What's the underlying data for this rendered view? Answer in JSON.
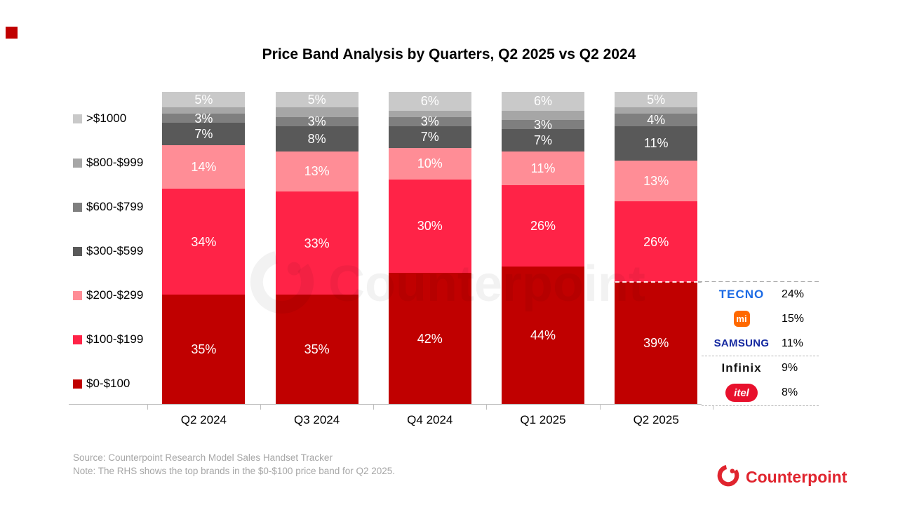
{
  "chart_data": {
    "type": "bar",
    "stacked": true,
    "title": "Price Band Analysis by Quarters, Q2 2025 vs Q2 2024",
    "value_unit": "%",
    "ylim": [
      0,
      100
    ],
    "grid": false,
    "legend_position": "left",
    "bar_label_color": "#FFFFFF",
    "categories": [
      "Q2 2024",
      "Q3 2024",
      "Q4 2024",
      "Q1 2025",
      "Q2 2025"
    ],
    "series": [
      {
        "name": "$0-$100",
        "color": "#C00000",
        "values": [
          35,
          35,
          42,
          44,
          39
        ],
        "show_labels": true
      },
      {
        "name": "$100-$199",
        "color": "#FF2347",
        "values": [
          34,
          33,
          30,
          26,
          26
        ],
        "show_labels": true
      },
      {
        "name": "$200-$299",
        "color": "#FF8D96",
        "values": [
          14,
          13,
          10,
          11,
          13
        ],
        "show_labels": true
      },
      {
        "name": "$300-$599",
        "color": "#595959",
        "values": [
          7,
          8,
          7,
          7,
          11
        ],
        "show_labels": true
      },
      {
        "name": "$600-$799",
        "color": "#7F7F7F",
        "values": [
          3,
          3,
          3,
          3,
          4
        ],
        "show_labels": true
      },
      {
        "name": "$800-$999",
        "color": "#A6A6A6",
        "values": [
          2,
          3,
          2,
          3,
          2
        ],
        "show_labels": false
      },
      {
        "name": ">$1000",
        "color": "#C9C9C9",
        "values": [
          5,
          5,
          6,
          6,
          5
        ],
        "show_labels": true
      }
    ],
    "legend": [
      ">$1000",
      "$800-$999",
      "$600-$799",
      "$300-$599",
      "$200-$299",
      "$100-$199",
      "$0-$100"
    ]
  },
  "brand_table": {
    "linked_band": "$0-$100",
    "linked_category": "Q2 2025",
    "rows": [
      {
        "brand": "TECNO",
        "logo": "tecno",
        "share": "24%"
      },
      {
        "brand": "mi",
        "logo": "xiaomi",
        "share": "15%"
      },
      {
        "brand": "SAMSUNG",
        "logo": "samsung",
        "share": "11%"
      },
      {
        "brand": "Infinix",
        "logo": "infinix",
        "share": "9%"
      },
      {
        "brand": "itel",
        "logo": "itel",
        "share": "8%"
      }
    ]
  },
  "watermark_text": "Counterpoint",
  "footer": {
    "source_line1": "Source: Counterpoint Research Model Sales Handset Tracker",
    "source_line2": "Note: The RHS shows the top brands in the $0-$100 price band for Q2 2025.",
    "brand_logo_text": "Counterpoint"
  },
  "colors": {
    "accent_red": "#C00000",
    "counterpoint_red": "#E0242E",
    "axis_gray": "#BFBFBF",
    "source_text_gray": "#A6A6A6"
  }
}
